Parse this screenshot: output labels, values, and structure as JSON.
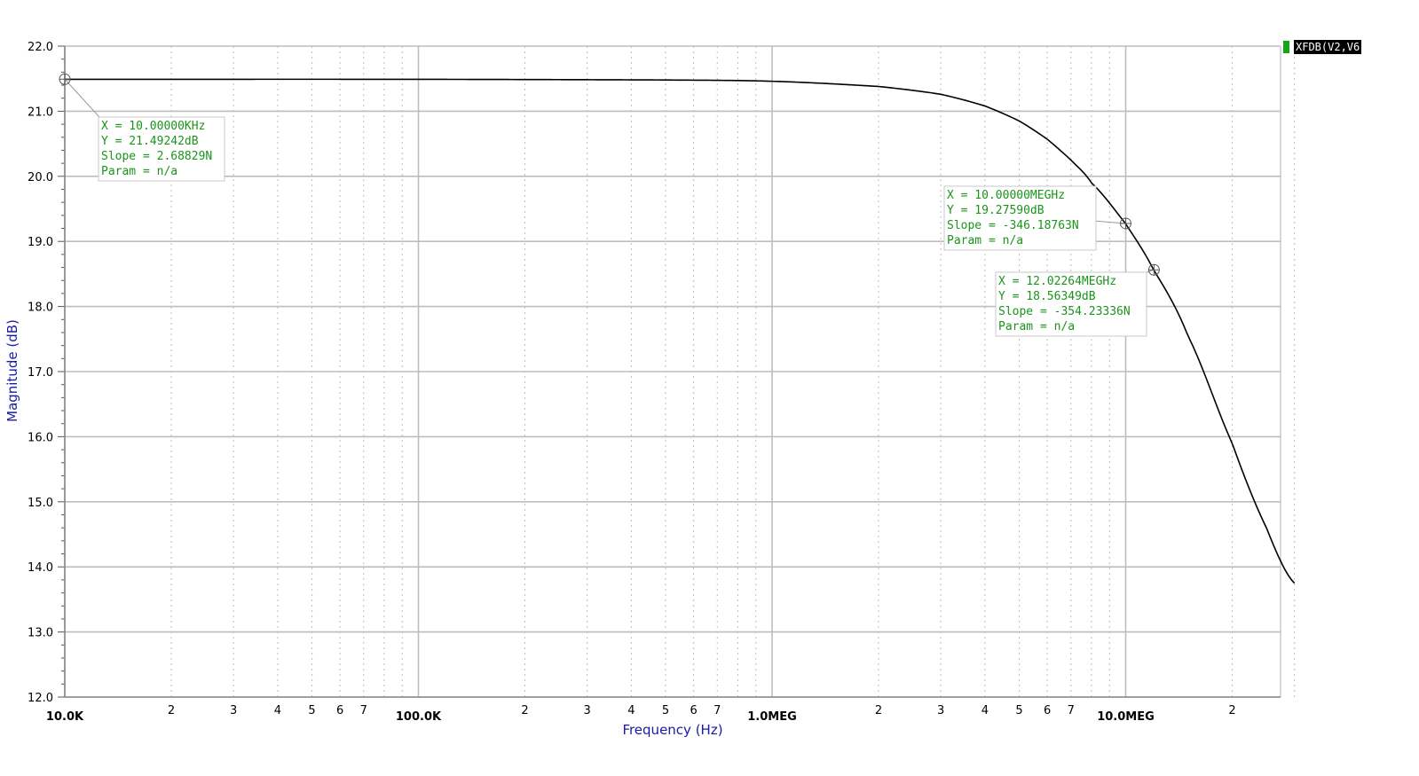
{
  "colors": {
    "curve": "#000000",
    "annotation_text": "#1b941b",
    "legend_swatch": "#19a319",
    "axis_title": "#1a1aa6",
    "grid": "#bdbdbd"
  },
  "legend": {
    "label": "XFDB(V2,V6"
  },
  "chart_data": {
    "type": "line",
    "title": "",
    "xlabel": "Frequency (Hz)",
    "ylabel": "Magnitude (dB)",
    "x_scale": "log",
    "xlim": [
      10000,
      30000000
    ],
    "ylim": [
      12.0,
      22.0
    ],
    "grid": true,
    "legend_position": "top-right",
    "x_major_tick_labels": [
      "10.0K",
      "100.0K",
      "1.0MEG",
      "10.0MEG"
    ],
    "x_major_tick_values": [
      10000,
      100000,
      1000000,
      10000000
    ],
    "x_minor_tick_labels": [
      "2",
      "3",
      "4",
      "5",
      "6",
      "7"
    ],
    "y_tick_labels": [
      "22.0",
      "21.0",
      "20.0",
      "19.0",
      "18.0",
      "17.0",
      "16.0",
      "15.0",
      "14.0",
      "13.0",
      "12.0"
    ],
    "y_tick_values": [
      22,
      21,
      20,
      19,
      18,
      17,
      16,
      15,
      14,
      13,
      12
    ],
    "series": [
      {
        "name": "XFDB(V2,V6",
        "x": [
          10000,
          100000,
          500000,
          1000000,
          2000000,
          3000000,
          4000000,
          5000000,
          6000000,
          7000000,
          8000000,
          10000000,
          12000000,
          15000000,
          20000000,
          25000000,
          30000000
        ],
        "y": [
          21.49,
          21.49,
          21.48,
          21.46,
          21.38,
          21.26,
          21.08,
          20.85,
          20.57,
          20.25,
          19.9,
          19.27,
          18.56,
          17.55,
          15.9,
          14.6,
          13.75
        ]
      }
    ],
    "annotations": [
      {
        "x": 10000,
        "y": 21.49242,
        "lines": [
          "X = 10.00000KHz",
          "Y = 21.49242dB",
          "Slope = 2.68829N",
          "Param = n/a"
        ]
      },
      {
        "x": 10000000,
        "y": 19.2759,
        "lines": [
          "X = 10.00000MEGHz",
          "Y = 19.27590dB",
          "Slope = -346.18763N",
          "Param = n/a"
        ]
      },
      {
        "x": 12022640,
        "y": 18.56349,
        "lines": [
          "X = 12.02264MEGHz",
          "Y = 18.56349dB",
          "Slope = -354.23336N",
          "Param = n/a"
        ]
      }
    ]
  }
}
